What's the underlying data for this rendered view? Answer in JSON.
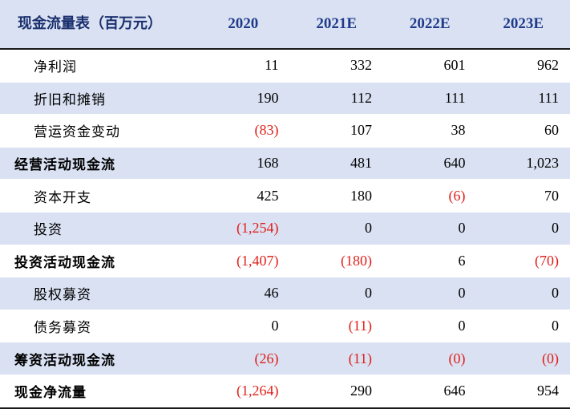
{
  "table": {
    "title": "现金流量表（百万元）",
    "years": [
      "2020",
      "2021E",
      "2022E",
      "2023E"
    ],
    "rows": [
      {
        "label": "净利润",
        "values": [
          "11",
          "332",
          "601",
          "962"
        ]
      },
      {
        "label": "折旧和摊销",
        "values": [
          "190",
          "112",
          "111",
          "111"
        ]
      },
      {
        "label": "营运资金变动",
        "values": [
          "(83)",
          "107",
          "38",
          "60"
        ]
      },
      {
        "label": "经营活动现金流",
        "values": [
          "168",
          "481",
          "640",
          "1,023"
        ]
      },
      {
        "label": "资本开支",
        "values": [
          "425",
          "180",
          "(6)",
          "70"
        ]
      },
      {
        "label": "投资",
        "values": [
          "(1,254)",
          "0",
          "0",
          "0"
        ]
      },
      {
        "label": "投资活动现金流",
        "values": [
          "(1,407)",
          "(180)",
          "6",
          "(70)"
        ]
      },
      {
        "label": "股权募资",
        "values": [
          "46",
          "0",
          "0",
          "0"
        ]
      },
      {
        "label": "债务募资",
        "values": [
          "0",
          "(11)",
          "0",
          "0"
        ]
      },
      {
        "label": "筹资活动现金流",
        "values": [
          "(26)",
          "(11)",
          "(0)",
          "(0)"
        ]
      },
      {
        "label": "现金净流量",
        "values": [
          "(1,264)",
          "290",
          "646",
          "954"
        ]
      }
    ]
  },
  "colors": {
    "header_bg": "#d9e1f2",
    "header_text": "#1f3a8a",
    "negative": "#e0201b",
    "shade": "#d9e1f2"
  }
}
